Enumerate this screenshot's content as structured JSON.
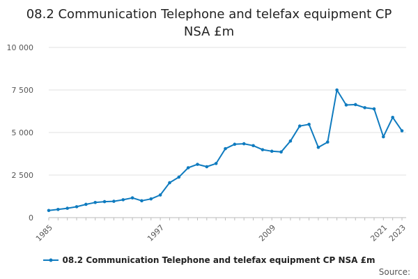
{
  "chart_data": {
    "type": "line",
    "title": "08.2 Communication Telephone and telefax equipment CP NSA £m",
    "xlabel": "",
    "ylabel": "",
    "x": [
      1985,
      1986,
      1987,
      1988,
      1989,
      1990,
      1991,
      1992,
      1993,
      1994,
      1995,
      1996,
      1997,
      1998,
      1999,
      2000,
      2001,
      2002,
      2003,
      2004,
      2005,
      2006,
      2007,
      2008,
      2009,
      2010,
      2011,
      2012,
      2013,
      2014,
      2015,
      2016,
      2017,
      2018,
      2019,
      2020,
      2021,
      2022,
      2023
    ],
    "series": [
      {
        "name": "08.2 Communication Telephone and telefax equipment CP NSA £m",
        "values": [
          420,
          480,
          550,
          640,
          780,
          890,
          940,
          960,
          1050,
          1160,
          990,
          1100,
          1330,
          2050,
          2380,
          2930,
          3130,
          2990,
          3180,
          4050,
          4310,
          4340,
          4230,
          3990,
          3900,
          3860,
          4500,
          5380,
          5480,
          4130,
          4440,
          7500,
          6620,
          6640,
          6460,
          6390,
          4750,
          5890,
          5100
        ]
      }
    ],
    "ylim": [
      0,
      10000
    ],
    "y_ticks": [
      0,
      2500,
      5000,
      7500,
      10000
    ],
    "y_tick_labels": [
      "0",
      "2 500",
      "5 000",
      "7 500",
      "10 000"
    ],
    "x_tick_labels": [
      "1985",
      "1997",
      "2009",
      "2021",
      "2023"
    ],
    "grid": "horizontal",
    "legend": "bottom-center",
    "line_color": "#0f7bbf",
    "grid_color": "#e2e2e2",
    "source_label": "Source:"
  }
}
